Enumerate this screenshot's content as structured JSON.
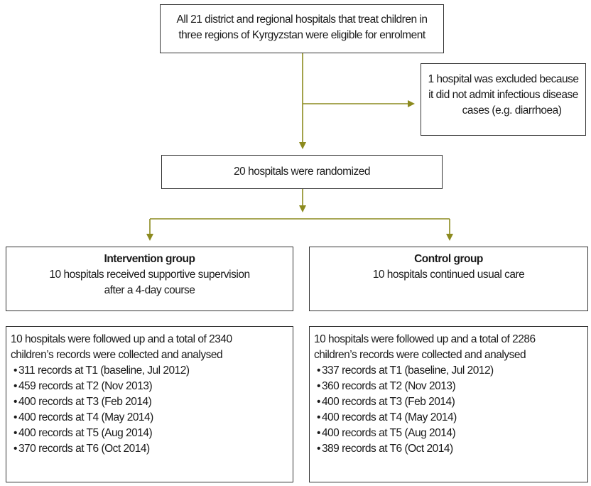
{
  "eligible": {
    "lines": [
      "All 21 district and regional hospitals that treat children in",
      "three regions of Kyrgyzstan were eligible for enrolment"
    ]
  },
  "excluded": {
    "lines": [
      "1 hospital was excluded because",
      "it did not admit infectious disease",
      "cases (e.g. diarrhoea)"
    ]
  },
  "randomized": {
    "text": "20 hospitals were randomized"
  },
  "intervention": {
    "title": "Intervention group",
    "lines": [
      "10 hospitals received supportive supervision",
      "after a 4-day course"
    ]
  },
  "control": {
    "title": "Control group",
    "lines": [
      "10 hospitals continued usual care"
    ]
  },
  "intervention_followup": {
    "lines": [
      "10 hospitals were followed up and a total of 2340",
      "children’s records were collected and analysed"
    ],
    "bullets": [
      "311 records at T1 (baseline, Jul 2012)",
      "459 records at T2 (Nov 2013)",
      "400 records at T3 (Feb 2014)",
      "400 records at T4 (May 2014)",
      "400 records at T5 (Aug 2014)",
      "370 records at T6 (Oct 2014)"
    ]
  },
  "control_followup": {
    "lines": [
      "10 hospitals were followed up and a total of 2286",
      "children’s records were collected and analysed"
    ],
    "bullets": [
      "337 records at T1 (baseline, Jul 2012)",
      "360 records at T2 (Nov 2013)",
      "400 records at T3 (Feb 2014)",
      "400 records at T4 (May 2014)",
      "400 records at T5 (Aug 2014)",
      "389 records at T6 (Oct 2014)"
    ]
  },
  "colors": {
    "arrow": "#8c8a1e",
    "border": "#333333"
  }
}
